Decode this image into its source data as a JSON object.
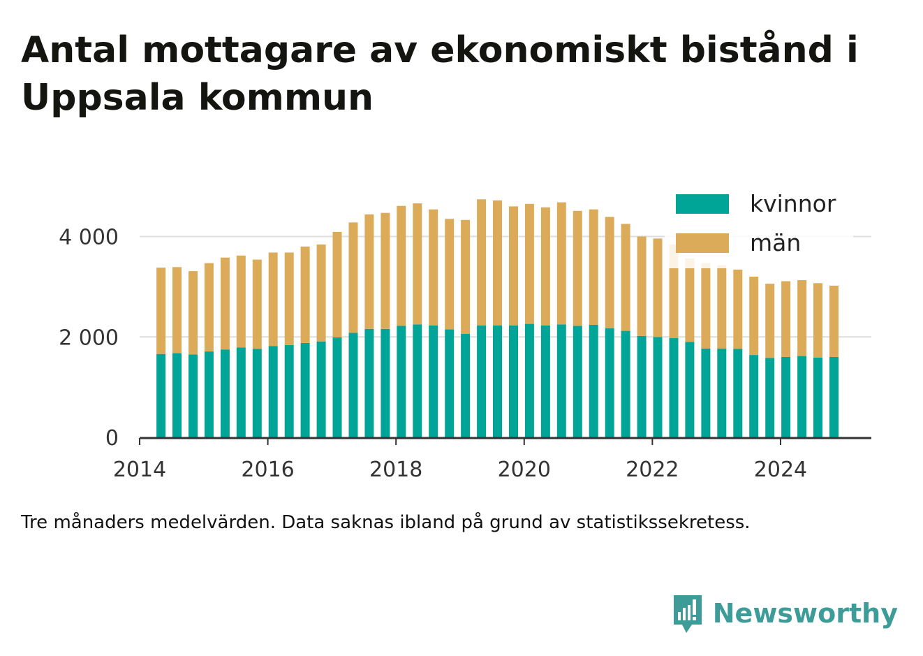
{
  "title": "Antal mottagare av ekonomiskt bistånd i Uppsala kommun",
  "footnote": "Tre månaders medelvärden. Data saknas ibland på grund av statistikssekretess.",
  "brand": {
    "name": "Newsworthy"
  },
  "colors": {
    "kvinnor": "#00a598",
    "man": "#dcab5a",
    "grid": "#dedede",
    "axis": "#333333",
    "brand": "#3d9c97"
  },
  "chart_data": {
    "type": "bar",
    "stacked": true,
    "title": "Antal mottagare av ekonomiskt bistånd i Uppsala kommun",
    "xlabel": "",
    "ylabel": "",
    "x_ticks": [
      "2014",
      "2016",
      "2018",
      "2020",
      "2022",
      "2024"
    ],
    "y_ticks": [
      "0",
      "2 000",
      "4 000"
    ],
    "ylim": [
      0,
      4800
    ],
    "xlim": [
      "2014-01",
      "2025-06"
    ],
    "grid": true,
    "legend_position": "top-right",
    "categories": [
      "2014-05",
      "2014-08",
      "2014-11",
      "2015-02",
      "2015-05",
      "2015-08",
      "2015-11",
      "2016-02",
      "2016-05",
      "2016-08",
      "2016-11",
      "2017-02",
      "2017-05",
      "2017-08",
      "2017-11",
      "2018-02",
      "2018-05",
      "2018-08",
      "2018-11",
      "2019-02",
      "2019-05",
      "2019-08",
      "2019-11",
      "2020-02",
      "2020-05",
      "2020-08",
      "2020-11",
      "2021-02",
      "2021-05",
      "2021-08",
      "2021-11",
      "2022-02",
      "2022-05",
      "2022-08",
      "2022-11",
      "2023-02",
      "2023-05",
      "2023-08",
      "2023-11",
      "2024-02",
      "2024-05",
      "2024-08",
      "2024-11"
    ],
    "series": [
      {
        "name": "kvinnor",
        "values": [
          1660,
          1680,
          1650,
          1710,
          1750,
          1790,
          1760,
          1820,
          1840,
          1880,
          1910,
          1990,
          2080,
          2160,
          2160,
          2220,
          2250,
          2230,
          2150,
          2060,
          2230,
          2230,
          2230,
          2260,
          2230,
          2250,
          2220,
          2240,
          2170,
          2120,
          2020,
          2000,
          1980,
          1900,
          1770,
          1770,
          1760,
          1640,
          1580,
          1600,
          1620,
          1590,
          1600
        ]
      },
      {
        "name": "män",
        "values": [
          1720,
          1710,
          1660,
          1760,
          1830,
          1830,
          1780,
          1860,
          1840,
          1920,
          1930,
          2100,
          2200,
          2280,
          2310,
          2390,
          2410,
          2310,
          2200,
          2270,
          2510,
          2490,
          2370,
          2390,
          2350,
          2430,
          2290,
          2300,
          2220,
          2130,
          1980,
          1960,
          1860,
          1660,
          1700,
          1660,
          1580,
          1560,
          1480,
          1510,
          1510,
          1480,
          1420
        ]
      }
    ]
  }
}
